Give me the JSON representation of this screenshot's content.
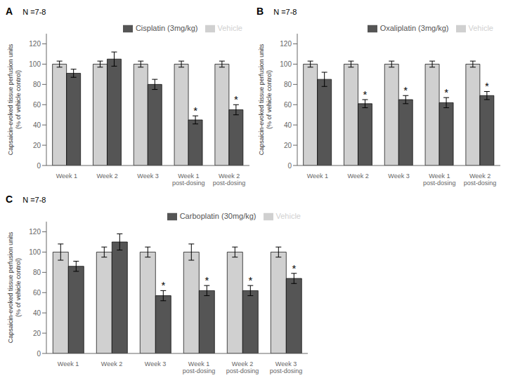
{
  "chart_data": [
    {
      "type": "bar",
      "title": "A",
      "ylabel": "Capsaicin-evoked tissue perfusion units\n(% of vehicle control)",
      "categories": [
        "Week 1",
        "Week 2",
        "Week 3",
        "Week 1\npost-dosing",
        "Week 2\npost-dosing"
      ],
      "series": [
        {
          "name": "Vehicle",
          "color": "#d0d0d0",
          "values": [
            100,
            100,
            100,
            100,
            100
          ],
          "errors": [
            3,
            3,
            3,
            3,
            3
          ]
        },
        {
          "name": "Cisplatin (3mg/kg)",
          "color": "#555555",
          "values": [
            91,
            105,
            80,
            45,
            55
          ],
          "errors": [
            4,
            7,
            5,
            4,
            5
          ]
        }
      ],
      "annotations": [
        {
          "text": "N =7-8"
        },
        {
          "text": "*",
          "category": "Week 1\npost-dosing",
          "series": "Cisplatin (3mg/kg)"
        },
        {
          "text": "*",
          "category": "Week 2\npost-dosing",
          "series": "Cisplatin (3mg/kg)"
        }
      ],
      "ylim": [
        0,
        130
      ],
      "yticks": [
        0,
        20,
        40,
        60,
        80,
        100,
        120
      ],
      "legend": "top",
      "grid": false
    },
    {
      "type": "bar",
      "title": "B",
      "ylabel": "Capsaicin-evoked tissue perfusion units\n(% of vehicle control)",
      "categories": [
        "Week 1",
        "Week 2",
        "Week 3",
        "Week 1\npost-dosing",
        "Week 2\npost-dosing"
      ],
      "series": [
        {
          "name": "Vehicle",
          "color": "#d0d0d0",
          "values": [
            100,
            100,
            100,
            100,
            100
          ],
          "errors": [
            3,
            3,
            3,
            3,
            3
          ]
        },
        {
          "name": "Oxaliplatin (3mg/kg)",
          "color": "#555555",
          "values": [
            85,
            61,
            65,
            62,
            69
          ],
          "errors": [
            7,
            4,
            4,
            5,
            4
          ]
        }
      ],
      "annotations": [
        {
          "text": "N =7-8"
        },
        {
          "text": "*",
          "category": "Week 2",
          "series": "Oxaliplatin (3mg/kg)"
        },
        {
          "text": "*",
          "category": "Week 3",
          "series": "Oxaliplatin (3mg/kg)"
        },
        {
          "text": "*",
          "category": "Week 1\npost-dosing",
          "series": "Oxaliplatin (3mg/kg)"
        },
        {
          "text": "*",
          "category": "Week 2\npost-dosing",
          "series": "Oxaliplatin (3mg/kg)"
        }
      ],
      "ylim": [
        0,
        130
      ],
      "yticks": [
        0,
        20,
        40,
        60,
        80,
        100,
        120
      ],
      "legend": "top",
      "grid": false
    },
    {
      "type": "bar",
      "title": "C",
      "ylabel": "Capsaicin-evoked tissue perfusion units\n(% of vehicle control)",
      "categories": [
        "Week 1",
        "Week 2",
        "Week 3",
        "Week 1\npost-dosing",
        "Week 2\npost-dosing",
        "Week 3\npost-dosing"
      ],
      "series": [
        {
          "name": "Vehicle",
          "color": "#d0d0d0",
          "values": [
            100,
            100,
            100,
            100,
            100,
            100
          ],
          "errors": [
            8,
            5,
            5,
            8,
            5,
            5
          ]
        },
        {
          "name": "Carboplatin (30mg/kg)",
          "color": "#555555",
          "values": [
            86,
            110,
            57,
            62,
            62,
            74
          ],
          "errors": [
            5,
            8,
            5,
            5,
            5,
            5
          ]
        }
      ],
      "annotations": [
        {
          "text": "N =7-8"
        },
        {
          "text": "*",
          "category": "Week 3",
          "series": "Carboplatin (30mg/kg)"
        },
        {
          "text": "*",
          "category": "Week 1\npost-dosing",
          "series": "Carboplatin (30mg/kg)"
        },
        {
          "text": "*",
          "category": "Week 2\npost-dosing",
          "series": "Carboplatin (30mg/kg)"
        },
        {
          "text": "*",
          "category": "Week 3\npost-dosing",
          "series": "Carboplatin (30mg/kg)"
        }
      ],
      "ylim": [
        0,
        130
      ],
      "yticks": [
        0,
        20,
        40,
        60,
        80,
        100,
        120
      ],
      "legend": "top",
      "grid": false
    }
  ]
}
